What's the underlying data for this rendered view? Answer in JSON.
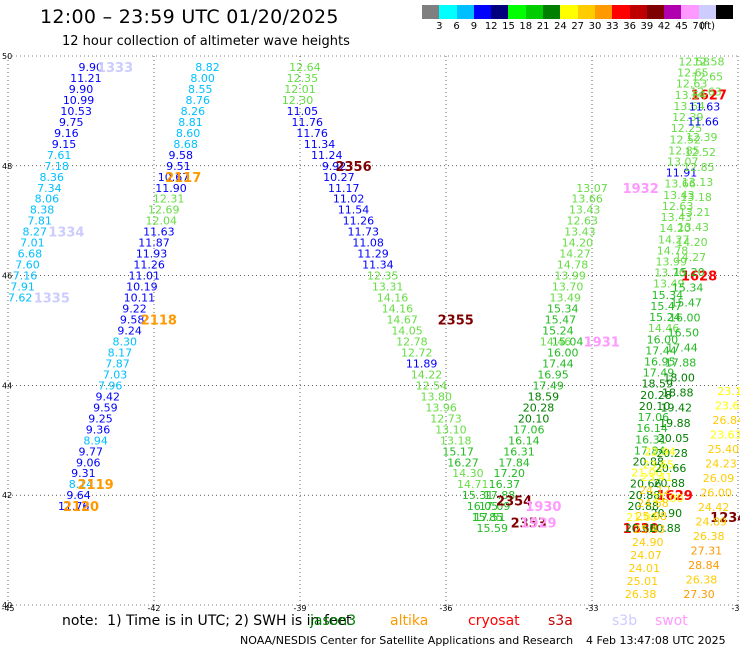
{
  "header": {
    "title": "12:00 – 23:59 UTC 01/20/2025",
    "subtitle": "12 hour collection of altimeter wave heights"
  },
  "colorbar": {
    "colors": [
      "#7f7f7f",
      "#00ffff",
      "#00bfff",
      "#0000ff",
      "#00007f",
      "#00ff00",
      "#00cc00",
      "#007f00",
      "#ffff00",
      "#ffcc00",
      "#ff9900",
      "#ff0000",
      "#bf0000",
      "#7f0000",
      "#b000b0",
      "#ff99ff",
      "#ccccff",
      "#000000"
    ],
    "labels": [
      "3",
      "6",
      "9",
      "12",
      "15",
      "18",
      "21",
      "24",
      "27",
      "30",
      "33",
      "36",
      "39",
      "42",
      "45",
      "70"
    ],
    "unit": "(ft)"
  },
  "chart_data": {
    "type": "scatter",
    "title": "12:00 – 23:59 UTC 01/20/2025",
    "subtitle": "12 hour collection of altimeter wave heights",
    "xlim": [
      -45,
      -30
    ],
    "ylim": [
      40,
      50
    ],
    "x_ticks": [
      "-45",
      "-42",
      "-39",
      "-36",
      "-33",
      "-30"
    ],
    "y_ticks": [
      "50",
      "48",
      "46",
      "44",
      "42",
      "40"
    ],
    "grid": true,
    "legend": [
      "jason3",
      "altika",
      "cryosat",
      "s3a",
      "s3b",
      "swot"
    ],
    "tracks": [
      {
        "id": "track-1333",
        "label": "1333",
        "label_pos": [
          -42.8,
          49.8
        ],
        "label_color": "#ccccff",
        "points": [
          [
            -43.3,
            49.8,
            "9.90"
          ],
          [
            -43.4,
            49.6,
            "11.21"
          ],
          [
            -43.5,
            49.4,
            "9.90"
          ],
          [
            -43.55,
            49.2,
            "10.99"
          ],
          [
            -43.6,
            49.0,
            "10.53"
          ],
          [
            -43.7,
            48.8,
            "9.75"
          ],
          [
            -43.8,
            48.6,
            "9.16"
          ],
          [
            -43.85,
            48.4,
            "9.15"
          ],
          [
            -43.95,
            48.2,
            "7.61"
          ],
          [
            -44.0,
            48.0,
            "7.18"
          ],
          [
            -44.1,
            47.8,
            "8.36"
          ],
          [
            -44.15,
            47.6,
            "7.34"
          ],
          [
            -44.2,
            47.4,
            "8.06"
          ],
          [
            -44.3,
            47.2,
            "8.38"
          ],
          [
            -44.35,
            47.0,
            "7.81"
          ],
          [
            -44.45,
            46.8,
            "8.27"
          ],
          [
            -44.5,
            46.6,
            "7.01"
          ],
          [
            -44.55,
            46.4,
            "6.68"
          ],
          [
            -44.6,
            46.2,
            "7.60"
          ],
          [
            -44.65,
            46.0,
            "7.16"
          ],
          [
            -44.7,
            45.8,
            "7.91"
          ],
          [
            -44.75,
            45.6,
            "7.62"
          ]
        ]
      },
      {
        "id": "track-1334",
        "label": "1334",
        "label_pos": [
          -43.8,
          46.8
        ],
        "label_color": "#ccccff",
        "points": []
      },
      {
        "id": "track-1335",
        "label": "1335",
        "label_pos": [
          -44.1,
          45.6
        ],
        "label_color": "#ccccff",
        "points": []
      },
      {
        "id": "track-2117",
        "label": "2117",
        "label_pos": [
          -41.4,
          47.8
        ],
        "label_color": "#ff9900",
        "points": [
          [
            -40.9,
            49.8,
            "8.82"
          ],
          [
            -41.0,
            49.6,
            "8.00"
          ],
          [
            -41.05,
            49.4,
            "8.55"
          ],
          [
            -41.1,
            49.2,
            "8.76"
          ],
          [
            -41.2,
            49.0,
            "8.26"
          ],
          [
            -41.25,
            48.8,
            "8.81"
          ],
          [
            -41.3,
            48.6,
            "8.60"
          ],
          [
            -41.35,
            48.4,
            "8.68"
          ],
          [
            -41.45,
            48.2,
            "9.58"
          ],
          [
            -41.5,
            48.0,
            "9.51"
          ],
          [
            -41.6,
            47.8,
            "10.67"
          ],
          [
            -41.65,
            47.6,
            "11.90"
          ],
          [
            -41.7,
            47.4,
            "12.31"
          ],
          [
            -41.8,
            47.2,
            "12.69"
          ],
          [
            -41.85,
            47.0,
            "12.04"
          ],
          [
            -41.9,
            46.8,
            "11.63"
          ],
          [
            -42.0,
            46.6,
            "11.87"
          ],
          [
            -42.05,
            46.4,
            "11.93"
          ],
          [
            -42.1,
            46.2,
            "11.26"
          ],
          [
            -42.2,
            46.0,
            "11.01"
          ],
          [
            -42.25,
            45.8,
            "10.19"
          ],
          [
            -42.3,
            45.6,
            "10.11"
          ],
          [
            -42.4,
            45.4,
            "9.22"
          ],
          [
            -42.45,
            45.2,
            "9.58"
          ],
          [
            -42.5,
            45.0,
            "9.24"
          ]
        ]
      },
      {
        "id": "track-2118",
        "label": "2118",
        "label_pos": [
          -41.9,
          45.2
        ],
        "label_color": "#ff9900",
        "points": [
          [
            -42.6,
            44.8,
            "8.30"
          ],
          [
            -42.7,
            44.6,
            "8.17"
          ],
          [
            -42.75,
            44.4,
            "7.87"
          ],
          [
            -42.8,
            44.2,
            "7.03"
          ],
          [
            -42.9,
            44.0,
            "7.96"
          ],
          [
            -42.95,
            43.8,
            "9.42"
          ],
          [
            -43.0,
            43.6,
            "9.59"
          ],
          [
            -43.1,
            43.4,
            "9.25"
          ],
          [
            -43.15,
            43.2,
            "9.36"
          ],
          [
            -43.2,
            43.0,
            "8.94"
          ],
          [
            -43.3,
            42.8,
            "9.77"
          ],
          [
            -43.35,
            42.6,
            "9.06"
          ],
          [
            -43.45,
            42.4,
            "9.31"
          ],
          [
            -43.5,
            42.2,
            "8.14"
          ],
          [
            -43.55,
            42.0,
            "9.64"
          ],
          [
            -43.65,
            41.8,
            "11.76"
          ]
        ]
      },
      {
        "id": "track-2119",
        "label": "2119",
        "label_pos": [
          -43.2,
          42.2
        ],
        "label_color": "#ff9900",
        "points": []
      },
      {
        "id": "track-2120",
        "label": "2120",
        "label_pos": [
          -43.5,
          41.8
        ],
        "label_color": "#ff9900",
        "points": []
      },
      {
        "id": "track-2356",
        "label": "2356",
        "label_pos": [
          -37.9,
          48.0
        ],
        "label_color": "#7f0000",
        "points": [
          [
            -38.9,
            49.8,
            "12.64"
          ],
          [
            -38.95,
            49.6,
            "12.35"
          ],
          [
            -39.0,
            49.4,
            "12.01"
          ],
          [
            -39.05,
            49.2,
            "12.30"
          ],
          [
            -38.95,
            49.0,
            "11.05"
          ],
          [
            -38.85,
            48.8,
            "11.76"
          ],
          [
            -38.75,
            48.6,
            "11.76"
          ],
          [
            -38.6,
            48.4,
            "11.34"
          ],
          [
            -38.45,
            48.2,
            "11.24"
          ],
          [
            -38.3,
            48.0,
            "9.92"
          ],
          [
            -38.2,
            47.8,
            "10.27"
          ],
          [
            -38.1,
            47.6,
            "11.17"
          ],
          [
            -38.0,
            47.4,
            "11.02"
          ],
          [
            -37.9,
            47.2,
            "11.54"
          ],
          [
            -37.8,
            47.0,
            "11.26"
          ],
          [
            -37.7,
            46.8,
            "11.73"
          ],
          [
            -37.6,
            46.6,
            "11.08"
          ],
          [
            -37.5,
            46.4,
            "11.29"
          ],
          [
            -37.4,
            46.2,
            "11.34"
          ],
          [
            -37.3,
            46.0,
            "12.35"
          ],
          [
            -37.2,
            45.8,
            "13.31"
          ],
          [
            -37.1,
            45.6,
            "14.16"
          ],
          [
            -37.0,
            45.4,
            "14.16"
          ],
          [
            -36.9,
            45.2,
            "14.67"
          ],
          [
            -36.8,
            45.0,
            "14.05"
          ],
          [
            -36.7,
            44.8,
            "12.78"
          ],
          [
            -36.6,
            44.6,
            "12.72"
          ],
          [
            -36.5,
            44.4,
            "11.89"
          ],
          [
            -36.4,
            44.2,
            "14.22"
          ],
          [
            -36.3,
            44.0,
            "12.54"
          ],
          [
            -36.2,
            43.8,
            "13.80"
          ],
          [
            -36.1,
            43.6,
            "13.96"
          ],
          [
            -36.0,
            43.4,
            "12.73"
          ],
          [
            -35.9,
            43.2,
            "13.10"
          ],
          [
            -35.8,
            43.0,
            "13.18"
          ],
          [
            -35.75,
            42.8,
            "15.17"
          ],
          [
            -35.65,
            42.6,
            "16.27"
          ],
          [
            -35.55,
            42.4,
            "14.30"
          ],
          [
            -35.45,
            42.2,
            "14.71"
          ],
          [
            -35.35,
            42.0,
            "15.31"
          ],
          [
            -35.25,
            41.8,
            "16.05"
          ],
          [
            -35.15,
            41.6,
            "15.85"
          ],
          [
            -35.05,
            41.4,
            "15.59"
          ]
        ]
      },
      {
        "id": "track-2355",
        "label": "2355",
        "label_pos": [
          -35.8,
          45.2
        ],
        "label_color": "#7f0000",
        "points": []
      },
      {
        "id": "track-2354",
        "label": "2354",
        "label_pos": [
          -34.6,
          41.9
        ],
        "label_color": "#7f0000",
        "points": [
          [
            -33.5,
            44.8,
            "15.04"
          ],
          [
            -33.6,
            44.6,
            "16.00"
          ],
          [
            -33.7,
            44.4,
            "17.44"
          ],
          [
            -33.8,
            44.2,
            "16.95"
          ],
          [
            -33.9,
            44.0,
            "17.49"
          ],
          [
            -34.0,
            43.8,
            "18.59"
          ],
          [
            -34.1,
            43.6,
            "20.28"
          ],
          [
            -34.2,
            43.4,
            "20.10"
          ],
          [
            -34.3,
            43.2,
            "17.06"
          ],
          [
            -34.4,
            43.0,
            "16.14"
          ],
          [
            -34.5,
            42.8,
            "16.31"
          ],
          [
            -34.6,
            42.6,
            "17.84"
          ],
          [
            -34.7,
            42.4,
            "17.20"
          ],
          [
            -34.8,
            42.2,
            "16.37"
          ],
          [
            -34.9,
            42.0,
            "17.88"
          ],
          [
            -35.0,
            41.8,
            "17.09"
          ],
          [
            -35.1,
            41.6,
            "17.51"
          ]
        ]
      },
      {
        "id": "track-2353",
        "label": "2353",
        "label_pos": [
          -34.3,
          41.5
        ],
        "label_color": "#7f0000",
        "points": [
          [
            -33.0,
            47.6,
            "13.07"
          ],
          [
            -33.1,
            47.4,
            "13.66"
          ],
          [
            -33.15,
            47.2,
            "13.43"
          ],
          [
            -33.2,
            47.0,
            "12.63"
          ],
          [
            -33.25,
            46.8,
            "13.43"
          ],
          [
            -33.3,
            46.6,
            "14.20"
          ],
          [
            -33.35,
            46.4,
            "14.27"
          ],
          [
            -33.4,
            46.2,
            "14.78"
          ],
          [
            -33.45,
            46.0,
            "13.99"
          ],
          [
            -33.5,
            45.8,
            "13.70"
          ],
          [
            -33.55,
            45.6,
            "13.49"
          ],
          [
            -33.6,
            45.4,
            "15.34"
          ],
          [
            -33.65,
            45.2,
            "15.47"
          ],
          [
            -33.7,
            45.0,
            "15.24"
          ],
          [
            -33.75,
            44.8,
            "14.46"
          ]
        ]
      },
      {
        "id": "track-1931",
        "label": "1931",
        "label_pos": [
          -32.8,
          44.8
        ],
        "label_color": "#ff99ff",
        "points": []
      },
      {
        "id": "track-1930",
        "label": "1930",
        "label_pos": [
          -34.0,
          41.8
        ],
        "label_color": "#ff99ff",
        "points": []
      },
      {
        "id": "track-1929",
        "label": "1929",
        "label_pos": [
          -34.1,
          41.5
        ],
        "label_color": "#ff99ff",
        "points": []
      },
      {
        "id": "track-1932",
        "label": "1932",
        "label_pos": [
          -32.0,
          47.6
        ],
        "label_color": "#ff99ff",
        "points": []
      },
      {
        "id": "track-1629",
        "label": "1629",
        "label_pos": [
          -31.3,
          42.0
        ],
        "label_color": "#ff0000",
        "points": []
      },
      {
        "id": "track-1628",
        "label": "1628",
        "label_pos": [
          -30.8,
          46.0
        ],
        "label_color": "#ff0000",
        "points": []
      },
      {
        "id": "track-1627",
        "label": "1627",
        "label_pos": [
          -30.6,
          49.3
        ],
        "label_color": "#ff0000",
        "points": []
      },
      {
        "id": "track-1630",
        "label": "1630",
        "label_pos": [
          -32.0,
          41.4
        ],
        "label_color": "#ff0000",
        "points": []
      },
      {
        "id": "track-1234",
        "label": "1234",
        "label_pos": [
          -30.2,
          41.6
        ],
        "label_color": "#7f0000",
        "points": []
      }
    ],
    "dense_bands": [
      {
        "id": "band-swot-1",
        "x0": -32.0,
        "y0": 41.4,
        "x1": -30.9,
        "y1": 49.9,
        "values": [
          "12.58",
          "12.65",
          "12.63",
          "13.64",
          "13.64",
          "12.39",
          "12.25",
          "12.52",
          "12.85",
          "13.07",
          "11.91",
          "13.66",
          "13.43",
          "12.63",
          "13.43",
          "14.20",
          "14.27",
          "14.78",
          "13.99",
          "13.70",
          "13.49",
          "15.34",
          "15.47",
          "15.24",
          "14.46",
          "16.00",
          "17.44",
          "16.95",
          "17.49",
          "18.59",
          "20.28",
          "20.10",
          "17.06",
          "16.14",
          "16.31",
          "17.84",
          "20.88",
          "21.00",
          "20.66",
          "20.88",
          "20.88",
          "21.00",
          "20.66"
        ]
      },
      {
        "id": "band-swot-2",
        "x0": -31.5,
        "y0": 41.4,
        "x1": -30.6,
        "y1": 49.9,
        "values": [
          "12.58",
          "12.65",
          "12.63",
          "11.63",
          "11.66",
          "12.39",
          "12.52",
          "12.85",
          "13.13",
          "13.18",
          "13.21",
          "13.43",
          "14.20",
          "14.27",
          "15.20",
          "15.34",
          "15.47",
          "16.00",
          "16.50",
          "17.44",
          "17.88",
          "18.00",
          "18.88",
          "19.42",
          "19.88",
          "20.05",
          "20.28",
          "20.66",
          "20.88",
          "21.00",
          "20.90",
          "20.88"
        ]
      },
      {
        "id": "band-alt-1",
        "x0": -32.0,
        "y0": 40.2,
        "x1": -31.6,
        "y1": 42.8,
        "values": [
          "22.94",
          "23.65",
          "23.41",
          "24.12",
          "24.68",
          "25.08",
          "25.43",
          "24.90",
          "24.07",
          "24.01",
          "25.01",
          "26.38"
        ]
      },
      {
        "id": "band-alt-2",
        "x0": -30.8,
        "y0": 40.2,
        "x1": -30.1,
        "y1": 43.9,
        "values": [
          "23.13",
          "23.65",
          "26.84",
          "23.63",
          "25.40",
          "24.23",
          "26.09",
          "26.00",
          "24.42",
          "24.89",
          "26.38",
          "27.31",
          "28.84",
          "26.38",
          "27.30"
        ]
      }
    ]
  },
  "legend": {
    "note": "note:  1) Time is in UTC; 2) SWH is in feet",
    "items": [
      {
        "name": "jason3",
        "color": "#007f00"
      },
      {
        "name": "altika",
        "color": "#ff9900"
      },
      {
        "name": "cryosat",
        "color": "#ff0000"
      },
      {
        "name": "s3a",
        "color": "#bf0000"
      },
      {
        "name": "s3b",
        "color": "#ccccff"
      },
      {
        "name": "swot",
        "color": "#ff99ff"
      }
    ]
  },
  "footer": {
    "credit": "NOAA/NESDIS Center for Satellite Applications and Research",
    "timestamp": "4 Feb 13:47:08 UTC 2025"
  }
}
